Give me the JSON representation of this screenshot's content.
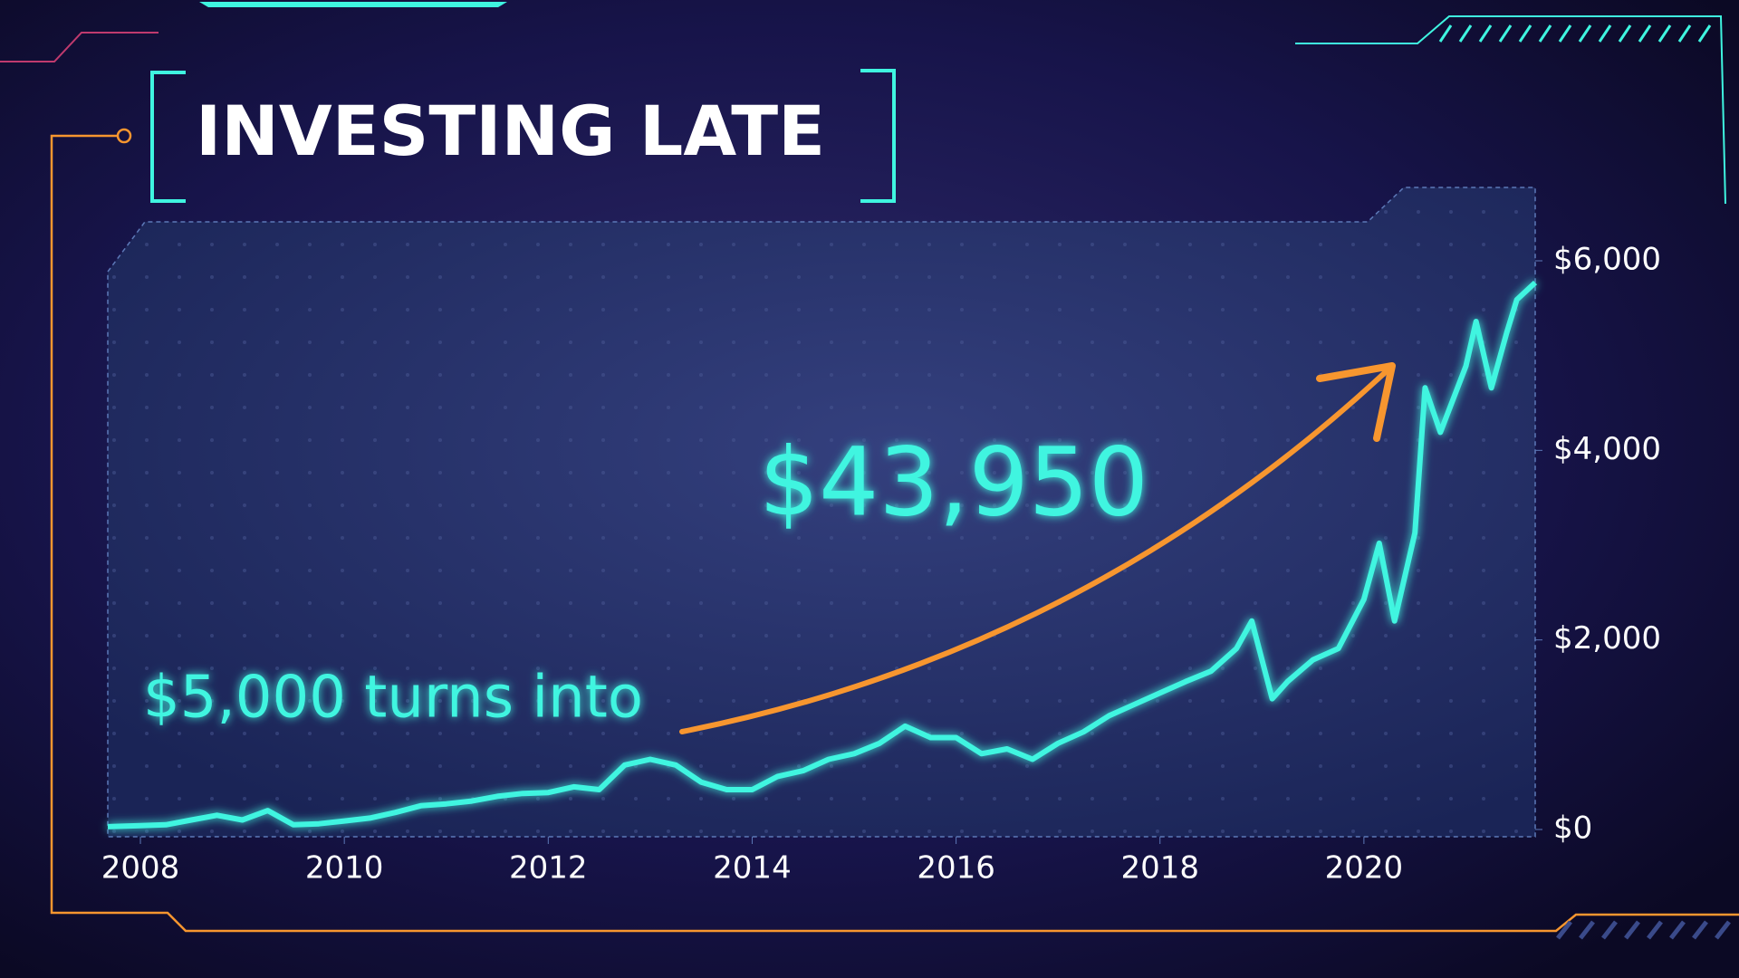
{
  "chart_data": {
    "type": "line",
    "title": "INVESTING LATE",
    "annotations": [
      "$43,950",
      "$5,000 turns into"
    ],
    "color": "#3ff5e0",
    "arrow_color": "#f7962f",
    "x": [
      2007.68,
      2008.0,
      2008.25,
      2008.5,
      2008.75,
      2009.0,
      2009.25,
      2009.5,
      2009.75,
      2010.0,
      2010.25,
      2010.5,
      2010.75,
      2011.0,
      2011.25,
      2011.5,
      2011.75,
      2012.0,
      2012.25,
      2012.5,
      2012.75,
      2013.0,
      2013.25,
      2013.5,
      2013.75,
      2014.0,
      2014.25,
      2014.5,
      2014.75,
      2015.0,
      2015.25,
      2015.5,
      2015.75,
      2016.0,
      2016.25,
      2016.5,
      2016.75,
      2017.0,
      2017.25,
      2017.5,
      2017.75,
      2018.0,
      2018.25,
      2018.5,
      2018.75,
      2018.9,
      2019.1,
      2019.25,
      2019.5,
      2019.75,
      2020.0,
      2020.15,
      2020.3,
      2020.5,
      2020.6,
      2020.75,
      2021.0,
      2021.1,
      2021.25,
      2021.4,
      2021.5,
      2021.68
    ],
    "values": [
      30,
      40,
      50,
      100,
      150,
      100,
      200,
      50,
      60,
      90,
      120,
      180,
      250,
      270,
      300,
      350,
      380,
      390,
      450,
      420,
      680,
      740,
      680,
      500,
      420,
      420,
      560,
      620,
      740,
      800,
      910,
      1090,
      970,
      970,
      800,
      850,
      740,
      910,
      1030,
      1200,
      1320,
      1440,
      1560,
      1670,
      1910,
      2200,
      1380,
      1560,
      1790,
      1910,
      2430,
      3020,
      2200,
      3130,
      4660,
      4190,
      4890,
      5360,
      4660,
      5240,
      5590,
      5770
    ],
    "xlim": [
      2007.68,
      2021.68
    ],
    "xticks": [
      2008,
      2010,
      2012,
      2014,
      2016,
      2018,
      2020
    ],
    "ylim": [
      0,
      6000
    ],
    "yticks": [
      {
        "value": 0,
        "label": "$0"
      },
      {
        "value": 2000,
        "label": "$2,000"
      },
      {
        "value": 4000,
        "label": "$4,000"
      },
      {
        "value": 6000,
        "label": "$6,000"
      }
    ]
  }
}
